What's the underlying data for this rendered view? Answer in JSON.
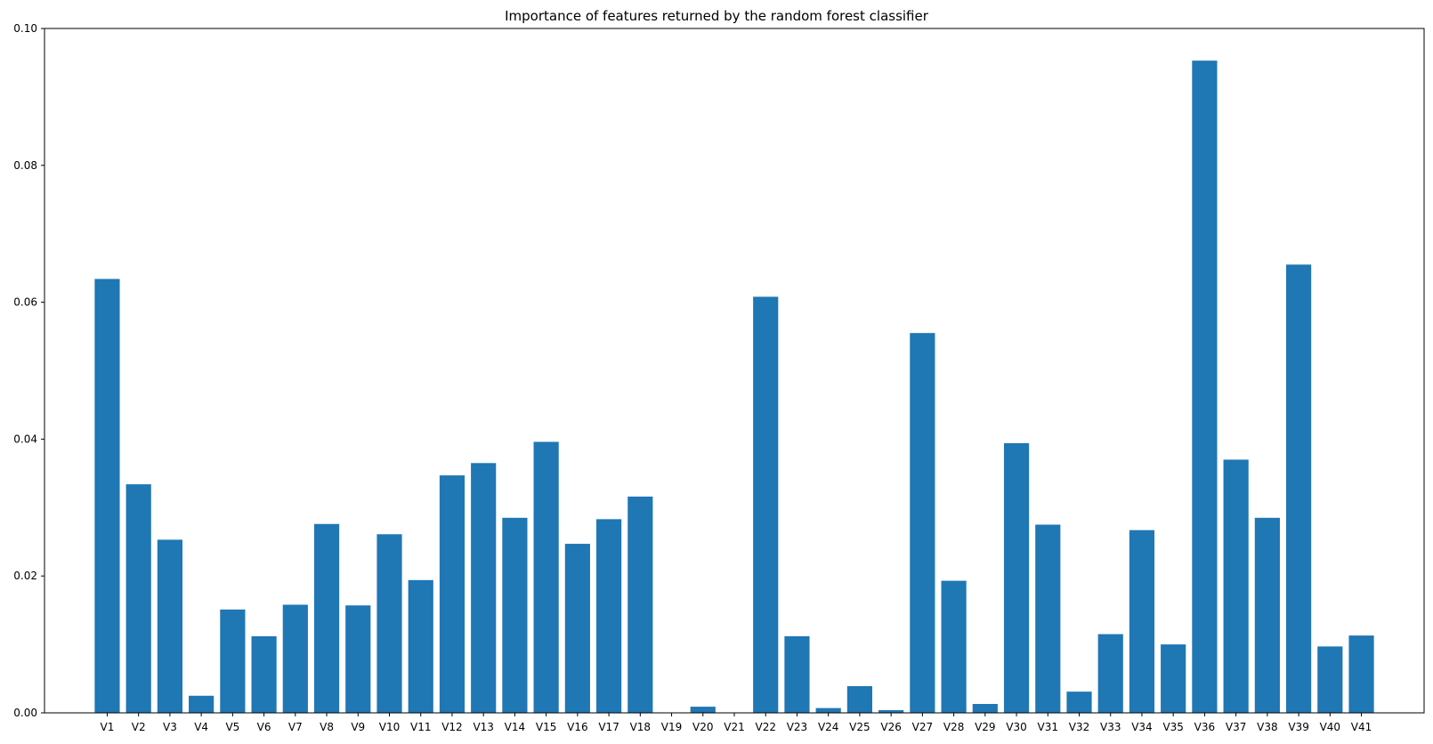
{
  "chart_data": {
    "type": "bar",
    "title": "Importance of features returned by the random forest classifier",
    "xlabel": "",
    "ylabel": "",
    "ylim": [
      0,
      0.1
    ],
    "yticks": [
      "0.00",
      "0.02",
      "0.04",
      "0.06",
      "0.08",
      "0.10"
    ],
    "categories": [
      "V1",
      "V2",
      "V3",
      "V4",
      "V5",
      "V6",
      "V7",
      "V8",
      "V9",
      "V10",
      "V11",
      "V12",
      "V13",
      "V14",
      "V15",
      "V16",
      "V17",
      "V18",
      "V19",
      "V20",
      "V21",
      "V22",
      "V23",
      "V24",
      "V25",
      "V26",
      "V27",
      "V28",
      "V29",
      "V30",
      "V31",
      "V32",
      "V33",
      "V34",
      "V35",
      "V36",
      "V37",
      "V38",
      "V39",
      "V40",
      "V41"
    ],
    "values": [
      0.0634,
      0.0334,
      0.0253,
      0.0025,
      0.0151,
      0.0112,
      0.0158,
      0.0276,
      0.0157,
      0.0261,
      0.0194,
      0.0347,
      0.0365,
      0.0285,
      0.0396,
      0.0247,
      0.0283,
      0.0316,
      0.0,
      0.0009,
      0.0,
      0.0608,
      0.0112,
      0.0007,
      0.0039,
      0.0004,
      0.0555,
      0.0193,
      0.0013,
      0.0394,
      0.0275,
      0.0031,
      0.0115,
      0.0267,
      0.01,
      0.0953,
      0.037,
      0.0285,
      0.0655,
      0.0097,
      0.0113
    ],
    "bar_color": "#1f77b4",
    "grid": false,
    "legend": "none"
  }
}
